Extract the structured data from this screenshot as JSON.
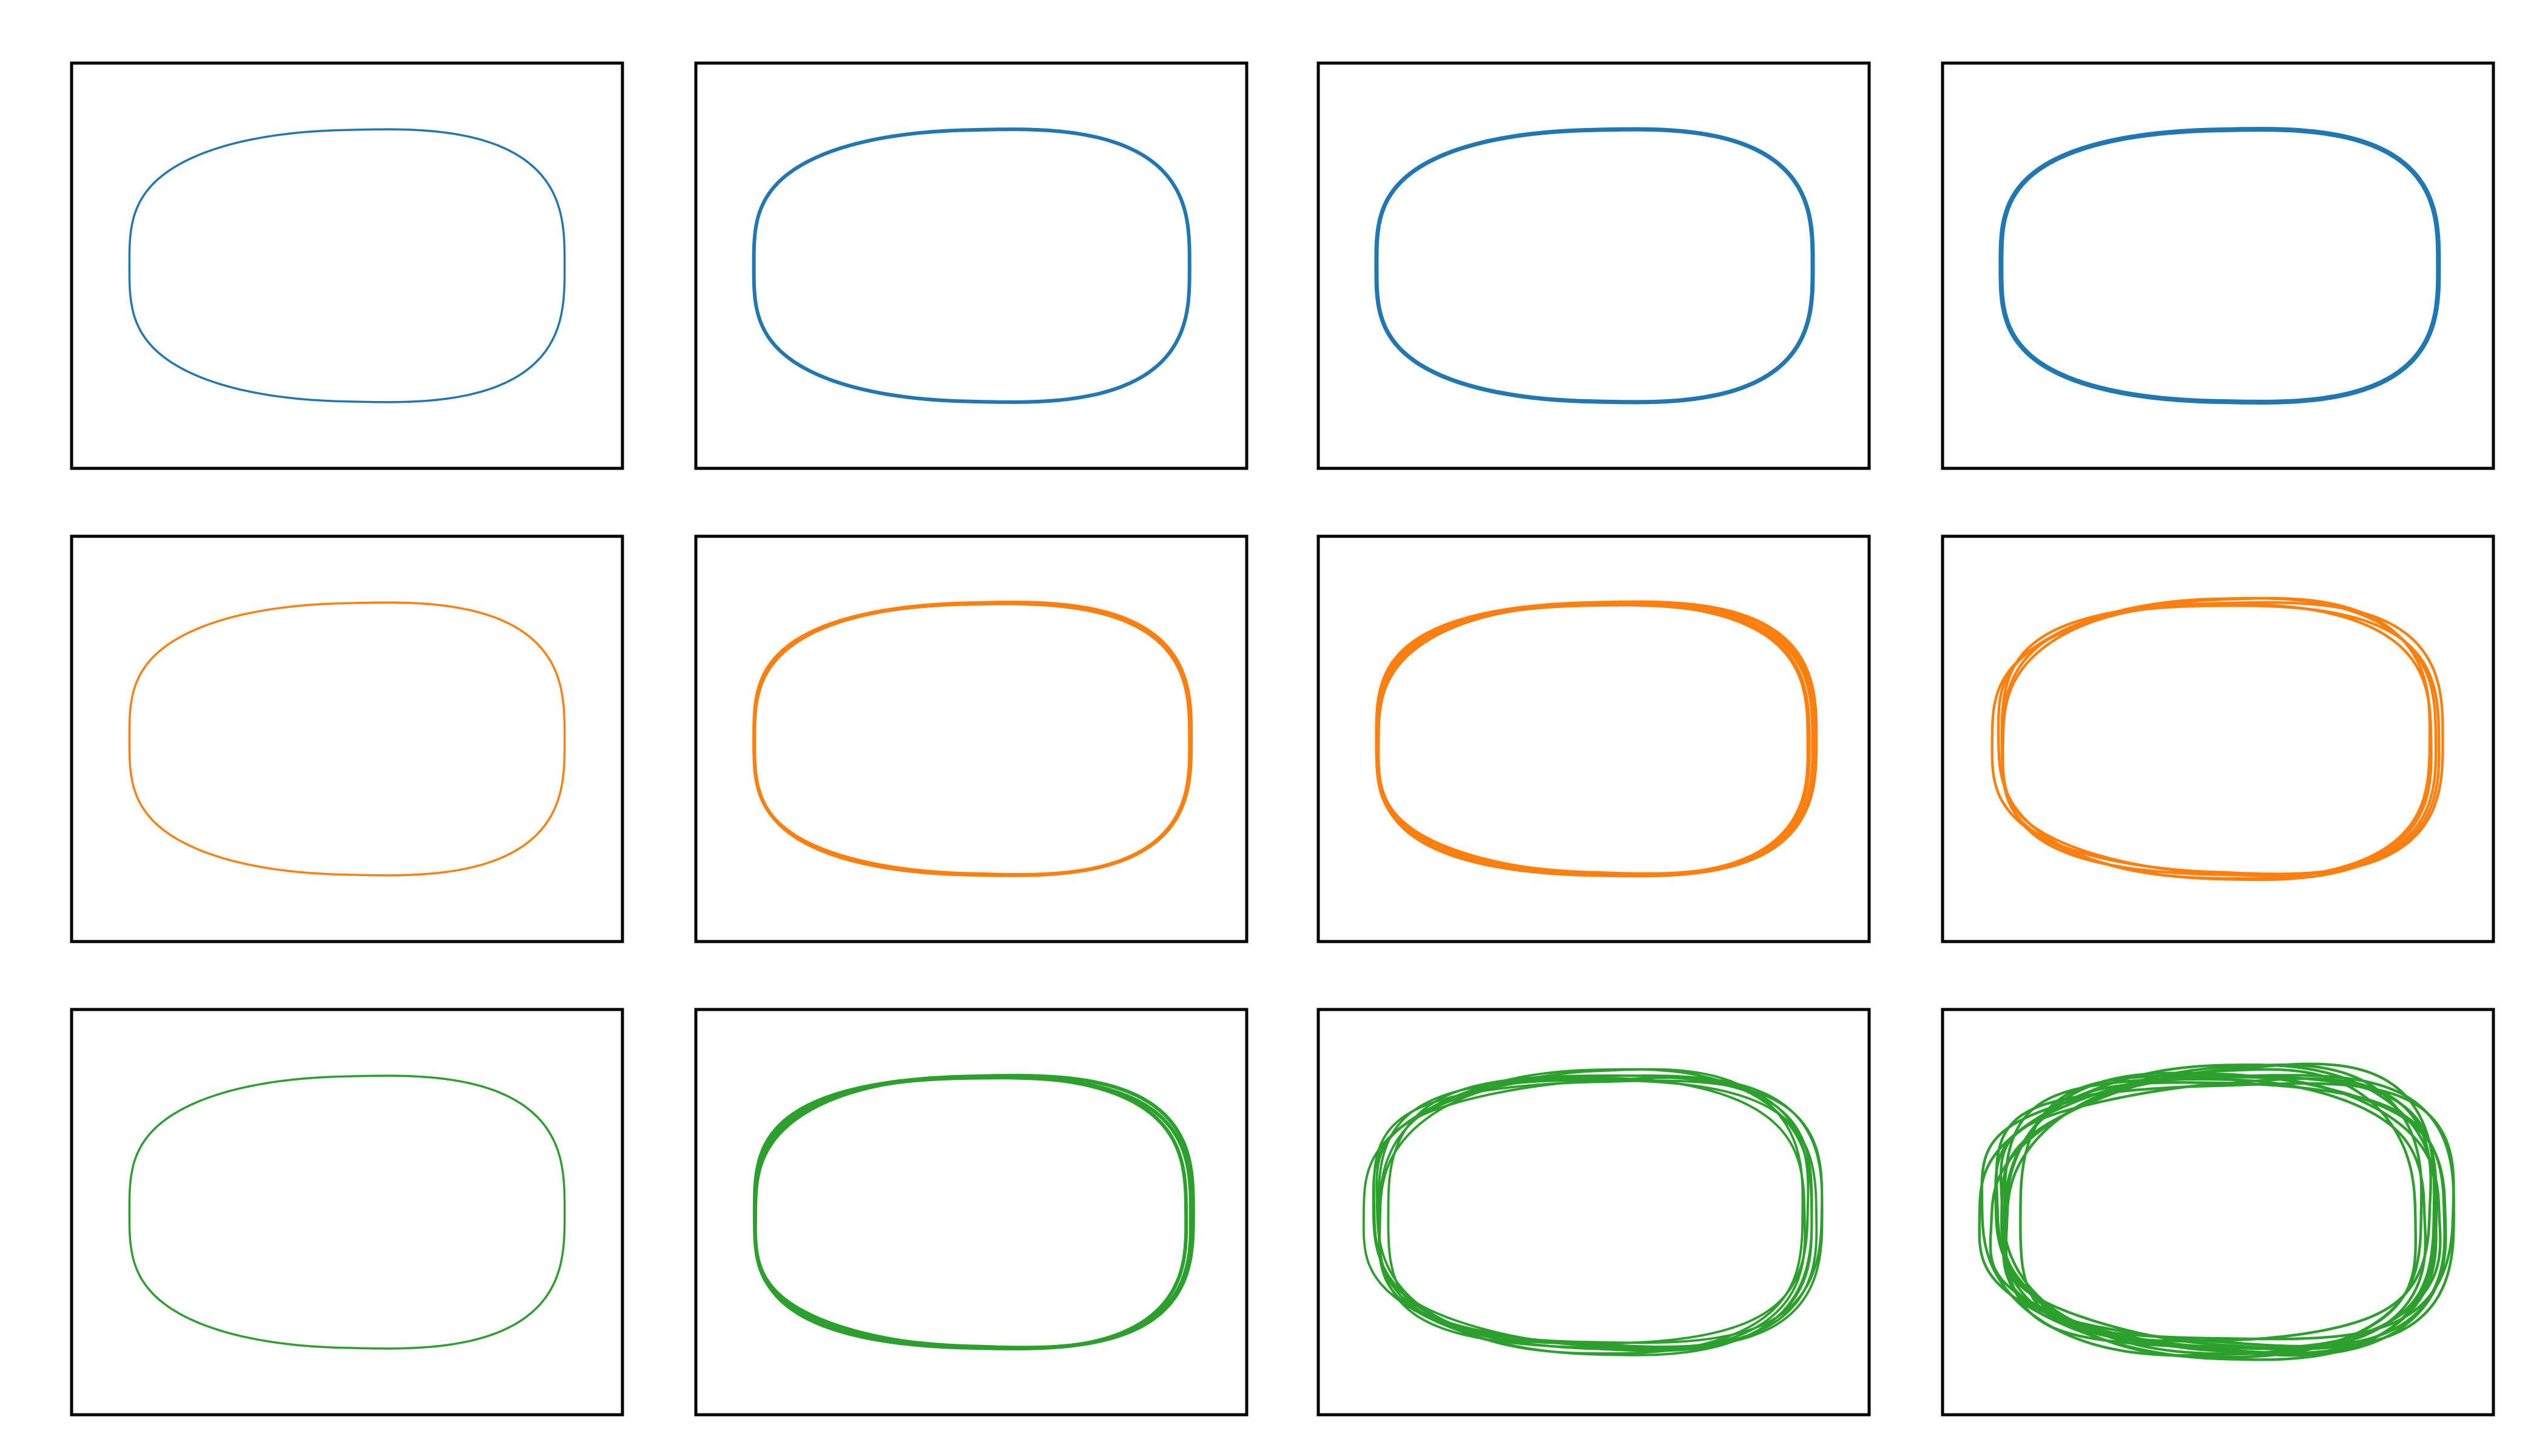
{
  "panels": [
    {
      "color": "#1f77b4"
    },
    {
      "color": "#1f77b4"
    },
    {
      "color": "#1f77b4"
    },
    {
      "color": "#1f77b4"
    },
    {
      "color": "#ff7f0e"
    },
    {
      "color": "#ff7f0e"
    },
    {
      "color": "#ff7f0e"
    },
    {
      "color": "#ff7f0e"
    },
    {
      "color": "#2ca02c"
    },
    {
      "color": "#2ca02c"
    },
    {
      "color": "#2ca02c"
    },
    {
      "color": "#2ca02c"
    }
  ]
}
